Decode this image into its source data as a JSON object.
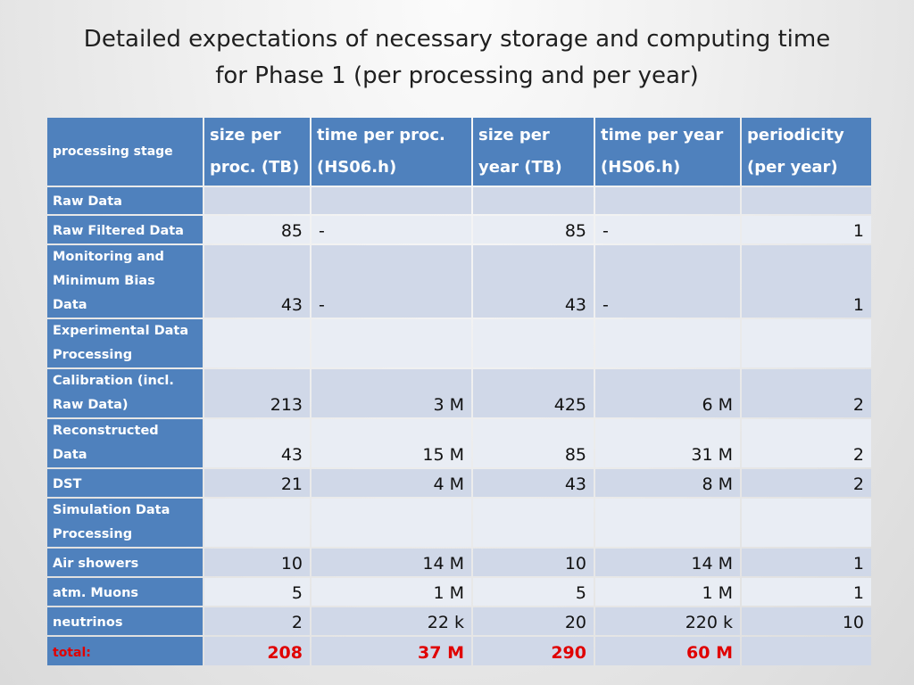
{
  "title": {
    "line1": "Detailed expectations of necessary storage and computing time",
    "line2": "for Phase 1 (per processing and per year)"
  },
  "table": {
    "headers": {
      "stage": "processing stage",
      "size_proc": [
        "size per",
        "proc. (TB)"
      ],
      "time_proc": [
        "time per proc.",
        "(HS06.h)"
      ],
      "size_year": [
        "size per",
        "year (TB)"
      ],
      "time_year": [
        "time per year",
        "(HS06.h)"
      ],
      "periodicity": [
        "periodicity",
        "(per year)"
      ]
    },
    "rows": [
      {
        "stage": [
          "Raw Data"
        ],
        "size_proc": "",
        "time_proc": "",
        "size_year": "",
        "time_year": "",
        "periodicity": ""
      },
      {
        "stage": [
          "Raw Filtered Data"
        ],
        "size_proc": "85",
        "time_proc": "-",
        "size_year": "85",
        "time_year": "-",
        "periodicity": "1"
      },
      {
        "stage": [
          "Monitoring and",
          "Minimum Bias",
          "Data"
        ],
        "size_proc": "43",
        "time_proc": "-",
        "size_year": "43",
        "time_year": "-",
        "periodicity": "1"
      },
      {
        "stage": [
          "Experimental Data",
          "Processing"
        ],
        "size_proc": "",
        "time_proc": "",
        "size_year": "",
        "time_year": "",
        "periodicity": ""
      },
      {
        "stage": [
          "Calibration (incl.",
          "Raw Data)"
        ],
        "size_proc": "213",
        "time_proc": "3 M",
        "size_year": "425",
        "time_year": "6 M",
        "periodicity": "2"
      },
      {
        "stage": [
          "Reconstructed",
          "Data"
        ],
        "size_proc": "43",
        "time_proc": "15 M",
        "size_year": "85",
        "time_year": "31 M",
        "periodicity": "2"
      },
      {
        "stage": [
          "DST"
        ],
        "size_proc": "21",
        "time_proc": "4 M",
        "size_year": "43",
        "time_year": "8 M",
        "periodicity": "2"
      },
      {
        "stage": [
          "Simulation Data",
          "Processing"
        ],
        "size_proc": "",
        "time_proc": "",
        "size_year": "",
        "time_year": "",
        "periodicity": ""
      },
      {
        "stage": [
          "Air showers"
        ],
        "size_proc": "10",
        "time_proc": "14 M",
        "size_year": "10",
        "time_year": "14 M",
        "periodicity": "1"
      },
      {
        "stage": [
          "atm. Muons"
        ],
        "size_proc": "5",
        "time_proc": "1 M",
        "size_year": "5",
        "time_year": "1 M",
        "periodicity": "1"
      },
      {
        "stage": [
          "neutrinos"
        ],
        "size_proc": "2",
        "time_proc": "22 k",
        "size_year": "20",
        "time_year": "220 k",
        "periodicity": "10"
      }
    ],
    "total": {
      "label": "total:",
      "size_proc": "208",
      "time_proc": "37 M",
      "size_year": "290",
      "time_year": "60 M",
      "periodicity": ""
    }
  },
  "colors": {
    "header_bg": "#4f81bd",
    "row_odd": "#d0d8e8",
    "row_even": "#e9edf4",
    "total_text": "#e00000"
  }
}
